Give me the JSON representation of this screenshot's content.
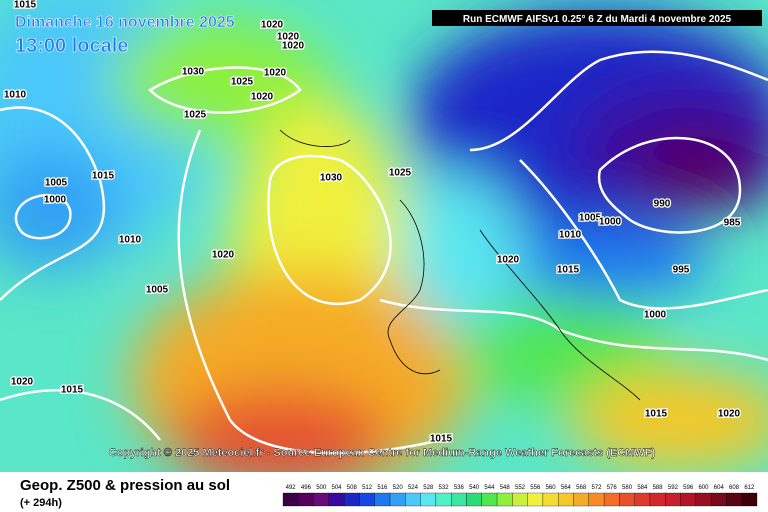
{
  "header": {
    "date": "Dimanche 16 novembre 2025",
    "time": "13:00 locale",
    "run": "Run ECMWF AIFSv1 0.25° 6 Z du Mardi 4 novembre 2025"
  },
  "copyright": "Copyright © 2025 Meteociel.fr - Source European Centre for Medium-Range Weather Forecasts (ECMWF)",
  "footer": {
    "title": "Geop. Z500 & pression au sol",
    "lead": "(+ 294h)"
  },
  "isobars": [
    "1015",
    "1020",
    "1020",
    "1020",
    "1010",
    "1030",
    "1025",
    "1020",
    "1020",
    "1025",
    "1015",
    "1005",
    "1000",
    "1030",
    "1025",
    "1010",
    "1020",
    "1005",
    "1020",
    "1015",
    "1010",
    "1005",
    "1000",
    "990",
    "985",
    "995",
    "1000",
    "1020",
    "1015",
    "1015",
    "1015",
    "1020"
  ],
  "legend": {
    "values": [
      "492",
      "496",
      "500",
      "504",
      "508",
      "512",
      "516",
      "520",
      "524",
      "528",
      "532",
      "536",
      "540",
      "544",
      "548",
      "552",
      "556",
      "560",
      "564",
      "568",
      "572",
      "576",
      "580",
      "584",
      "588",
      "592",
      "596",
      "600",
      "604",
      "608",
      "612"
    ],
    "colors": [
      "#3c0046",
      "#55005f",
      "#6a0a78",
      "#3a0aa0",
      "#1a28c8",
      "#1448e6",
      "#1e78f0",
      "#32a0f5",
      "#4bc8fa",
      "#5ae6f0",
      "#50f0c8",
      "#3ce6a0",
      "#28dc78",
      "#50e650",
      "#8cf03c",
      "#c8f03c",
      "#f0f03c",
      "#f5dc32",
      "#f5c828",
      "#f5aa28",
      "#f58c28",
      "#f06e28",
      "#e6502d",
      "#dc3c2d",
      "#d2282d",
      "#c81e2d",
      "#b41428",
      "#960f23",
      "#780a1e",
      "#5a0514",
      "#3c000a"
    ]
  }
}
